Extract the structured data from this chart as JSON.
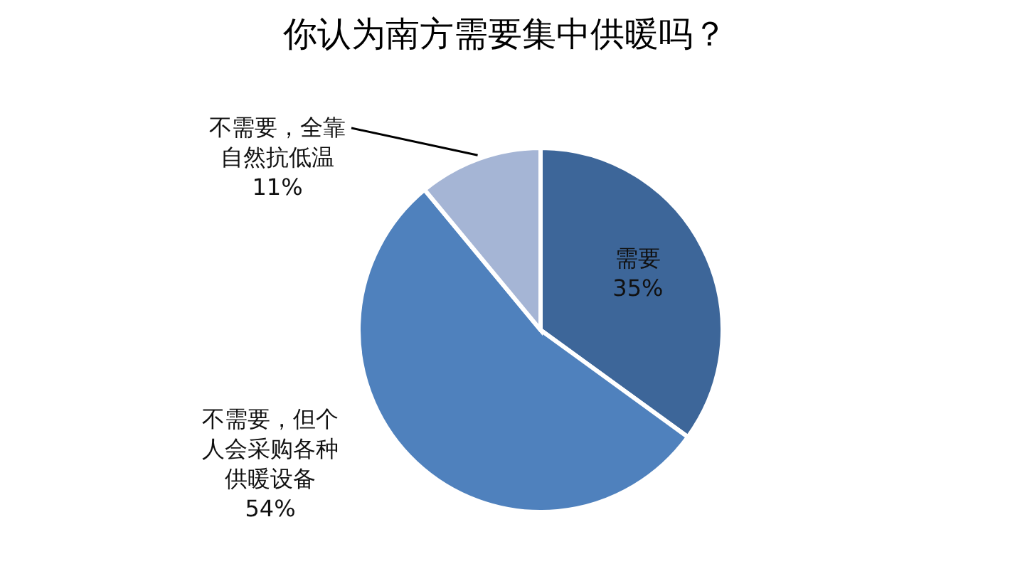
{
  "chart_data": {
    "type": "pie",
    "title": "你认为南方需要集中供暖吗？",
    "categories": [
      "需要",
      "不需要，但个人会采购各种供暖设备",
      "不需要，全靠自然抗低温"
    ],
    "values": [
      35,
      54,
      11
    ],
    "value_labels": [
      "35%",
      "54%",
      "11%"
    ],
    "colors": [
      "#3d6699",
      "#4f81bd",
      "#a5b5d5"
    ]
  }
}
